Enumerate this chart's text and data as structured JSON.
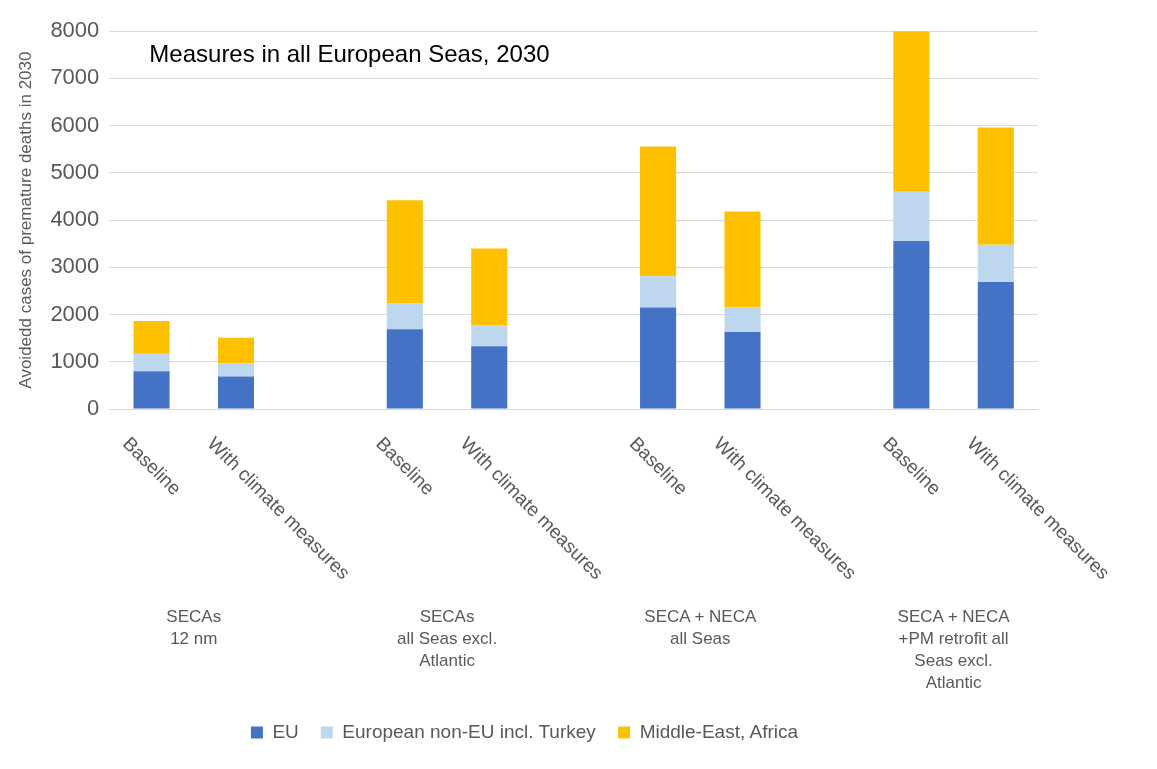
{
  "chart_data": {
    "type": "bar",
    "title": "Measures in all European Seas, 2030",
    "ylabel": "Avoidedd cases of premature deaths in 2030",
    "categories": [
      "Baseline",
      "With climate measures",
      null,
      "Baseline",
      "With climate measures",
      null,
      "Baseline",
      "With climate measures",
      null,
      "Baseline",
      "With climate measures"
    ],
    "series": [
      {
        "name": "EU",
        "color": "#4472c4",
        "values": [
          800,
          690,
          null,
          1690,
          1330,
          null,
          2150,
          1630,
          null,
          3560,
          2690
        ]
      },
      {
        "name": "European non-EU incl. Turkey",
        "color": "#bdd7ee",
        "values": [
          370,
          280,
          null,
          550,
          440,
          null,
          660,
          520,
          null,
          1040,
          790
        ]
      },
      {
        "name": "Middle-East, Africa",
        "color": "#ffc000",
        "values": [
          695,
          540,
          null,
          2180,
          1630,
          null,
          2750,
          2030,
          null,
          3400,
          2480
        ]
      }
    ],
    "annotations": [
      "SECAs\n12 nm",
      "SECAs\nall Seas excl. Atlantic",
      "SECA + NECA\nall Seas",
      "SECA + NECA\n+PM retrofit all Seas excl. Atlantic"
    ],
    "stacked": true,
    "ylim": [
      0,
      8000
    ],
    "yticks": [
      0,
      1000,
      2000,
      3000,
      4000,
      5000,
      6000,
      7000,
      8000
    ],
    "grid": "y",
    "legend": "bottom"
  }
}
